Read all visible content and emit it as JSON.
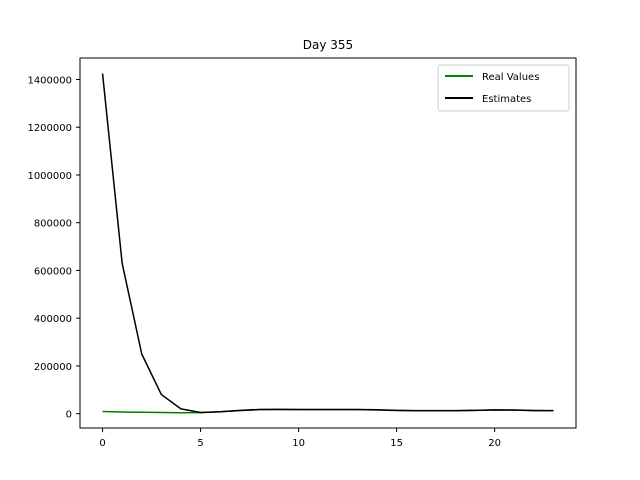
{
  "chart_data": {
    "type": "line",
    "title": "Day 355",
    "xlabel": "",
    "ylabel": "",
    "xlim": [
      -1.15,
      24.15
    ],
    "ylim": [
      -60000,
      1490000
    ],
    "x_ticks": [
      0,
      5,
      10,
      15,
      20
    ],
    "y_ticks": [
      0,
      200000,
      400000,
      600000,
      800000,
      1000000,
      1200000,
      1400000
    ],
    "grid": false,
    "legend_position": "top-right",
    "x": [
      0,
      1,
      2,
      3,
      4,
      5,
      6,
      7,
      8,
      9,
      10,
      11,
      12,
      13,
      14,
      15,
      16,
      17,
      18,
      19,
      20,
      21,
      22,
      23
    ],
    "series": [
      {
        "name": "Real Values",
        "color": "#008000",
        "values": [
          9000,
          7000,
          6000,
          5000,
          4000,
          4500,
          8000,
          13000,
          17000,
          17500,
          17000,
          17000,
          17000,
          17000,
          15500,
          13500,
          12000,
          12000,
          12500,
          14000,
          15500,
          15000,
          13000,
          12000
        ]
      },
      {
        "name": "Estimates",
        "color": "#000000",
        "values": [
          1425000,
          630000,
          250000,
          80000,
          20000,
          5000,
          8000,
          14000,
          17500,
          18000,
          17500,
          17500,
          17500,
          17500,
          16500,
          14000,
          13000,
          13000,
          13000,
          14000,
          16000,
          15500,
          13500,
          13000
        ]
      }
    ]
  }
}
